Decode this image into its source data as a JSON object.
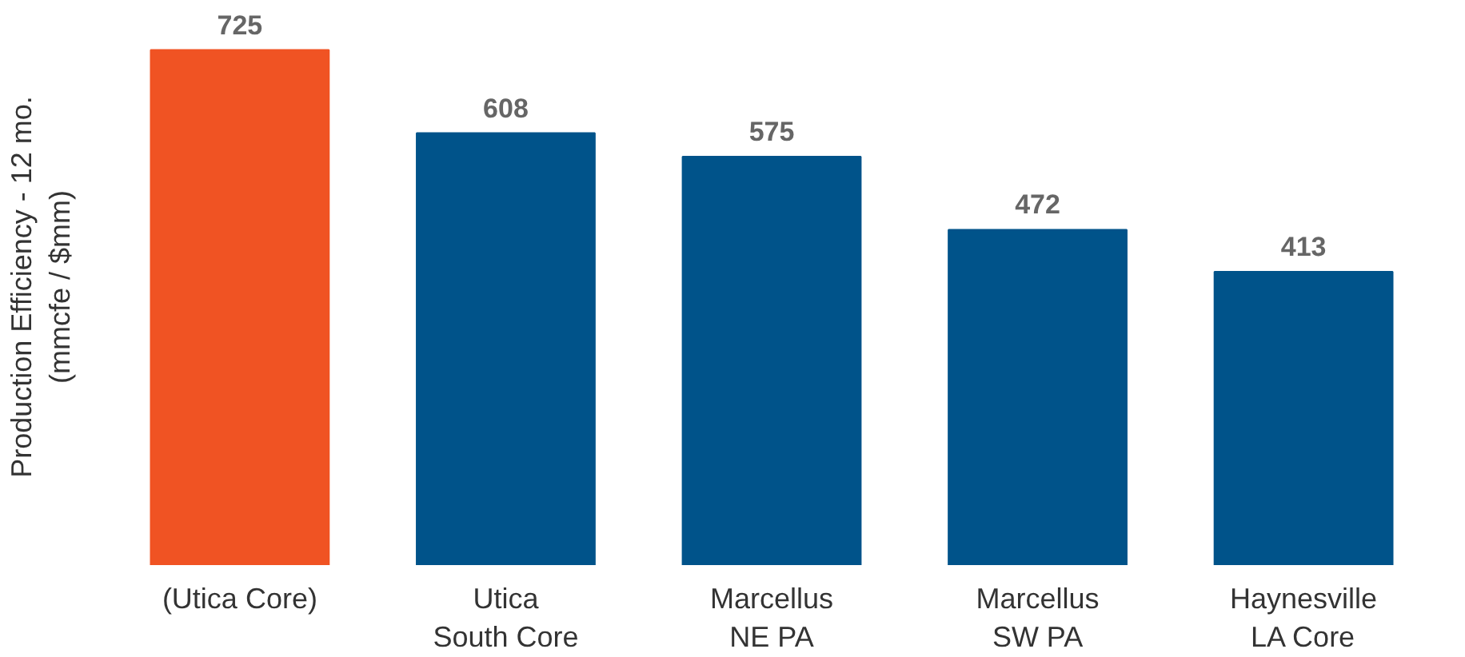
{
  "chart_data": {
    "type": "bar",
    "ylabel": "Production Efficiency - 12 mo.\n(mmcfe / $mm)",
    "categories": [
      "(Utica Core)",
      "Utica\nSouth Core",
      "Marcellus\nNE PA",
      "Marcellus\nSW PA",
      "Haynesville\nLA Core"
    ],
    "values": [
      725,
      608,
      575,
      472,
      413
    ],
    "colors": [
      "#f05323",
      "#00538a",
      "#00538a",
      "#00538a",
      "#00538a"
    ],
    "data_labels": true,
    "grid": false,
    "tick_labels": "x"
  }
}
